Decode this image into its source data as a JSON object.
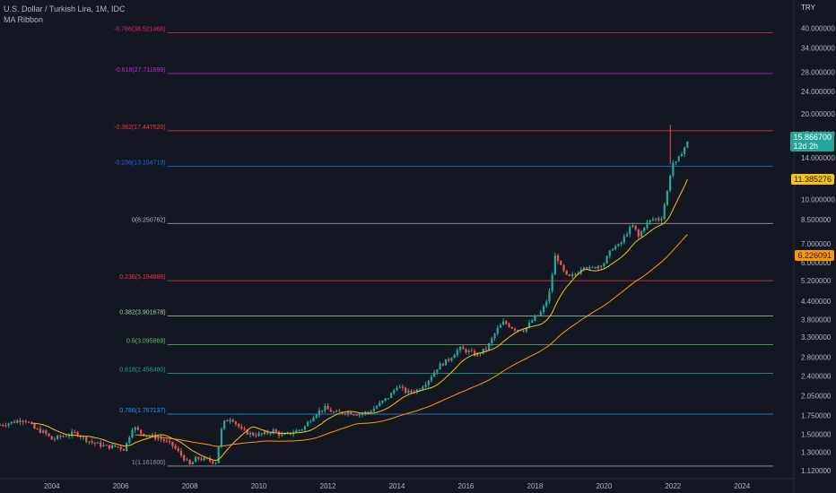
{
  "header": {
    "symbol_title": "U.S. Dollar / Turkish Lira, 1M, IDC",
    "indicator": "MA Ribbon"
  },
  "chart_data": {
    "type": "candlestick",
    "currency_label": "TRY",
    "y_scale": "log",
    "ylim": [
      1.08,
      46
    ],
    "xlim": [
      2002.5,
      2025.5
    ],
    "y_ticks": [
      "40.000000",
      "34.000000",
      "28.000000",
      "24.000000",
      "20.000000",
      "17.000000",
      "14.000000",
      "12.000000",
      "10.000000",
      "8.500000",
      "7.000000",
      "6.000000",
      "5.200000",
      "4.400000",
      "3.800000",
      "3.300000",
      "2.800000",
      "2.400000",
      "2.050000",
      "1.750000",
      "1.500000",
      "1.300000",
      "1.120000"
    ],
    "x_ticks": [
      "2004",
      "2006",
      "2008",
      "2010",
      "2012",
      "2014",
      "2016",
      "2018",
      "2020",
      "2022",
      "2024"
    ],
    "fib_levels": [
      {
        "label": "-0.786(38.521468)",
        "value": 38.521468,
        "color": "#e0245e"
      },
      {
        "label": "-0.618(27.711899)",
        "value": 27.711899,
        "color": "#c026d3"
      },
      {
        "label": "-0.382(17.447520)",
        "value": 17.44752,
        "color": "#f23645"
      },
      {
        "label": "-0.236(13.104719)",
        "value": 13.104719,
        "color": "#2962ff"
      },
      {
        "label": "0(8.250762)",
        "value": 8.250762,
        "color": "#b2b5be"
      },
      {
        "label": "0.236(5.194886)",
        "value": 5.194886,
        "color": "#f23645"
      },
      {
        "label": "0.382(3.901678)",
        "value": 3.901678,
        "color": "#a5d6a7"
      },
      {
        "label": "0.5(3.095869)",
        "value": 3.095869,
        "color": "#66bb6a"
      },
      {
        "label": "0.618(2.456480)",
        "value": 2.45648,
        "color": "#26a69a"
      },
      {
        "label": "0.786(1.767137)",
        "value": 1.767137,
        "color": "#2196f3"
      },
      {
        "label": "1(1.161600)",
        "value": 1.1616,
        "color": "#9598a1"
      }
    ],
    "series_points": [
      [
        2002.5,
        1.62
      ],
      [
        2002.9,
        1.66
      ],
      [
        2003.2,
        1.7
      ],
      [
        2003.5,
        1.57
      ],
      [
        2003.8,
        1.52
      ],
      [
        2004.0,
        1.44
      ],
      [
        2004.3,
        1.48
      ],
      [
        2004.7,
        1.52
      ],
      [
        2004.9,
        1.46
      ],
      [
        2005.2,
        1.4
      ],
      [
        2005.6,
        1.36
      ],
      [
        2005.9,
        1.36
      ],
      [
        2006.1,
        1.33
      ],
      [
        2006.35,
        1.6
      ],
      [
        2006.6,
        1.51
      ],
      [
        2006.9,
        1.48
      ],
      [
        2007.2,
        1.44
      ],
      [
        2007.5,
        1.37
      ],
      [
        2007.8,
        1.25
      ],
      [
        2008.0,
        1.17
      ],
      [
        2008.2,
        1.24
      ],
      [
        2008.5,
        1.22
      ],
      [
        2008.75,
        1.2
      ],
      [
        2008.95,
        1.64
      ],
      [
        2009.2,
        1.72
      ],
      [
        2009.5,
        1.55
      ],
      [
        2009.8,
        1.5
      ],
      [
        2010.1,
        1.5
      ],
      [
        2010.4,
        1.55
      ],
      [
        2010.7,
        1.48
      ],
      [
        2010.95,
        1.52
      ],
      [
        2011.3,
        1.58
      ],
      [
        2011.6,
        1.76
      ],
      [
        2011.9,
        1.86
      ],
      [
        2012.2,
        1.78
      ],
      [
        2012.5,
        1.8
      ],
      [
        2012.9,
        1.77
      ],
      [
        2013.2,
        1.8
      ],
      [
        2013.5,
        1.92
      ],
      [
        2013.8,
        2.05
      ],
      [
        2014.0,
        2.22
      ],
      [
        2014.3,
        2.1
      ],
      [
        2014.6,
        2.15
      ],
      [
        2014.9,
        2.32
      ],
      [
        2015.2,
        2.6
      ],
      [
        2015.5,
        2.75
      ],
      [
        2015.8,
        3.0
      ],
      [
        2016.0,
        2.95
      ],
      [
        2016.3,
        2.85
      ],
      [
        2016.6,
        3.0
      ],
      [
        2016.9,
        3.5
      ],
      [
        2017.1,
        3.72
      ],
      [
        2017.4,
        3.52
      ],
      [
        2017.7,
        3.5
      ],
      [
        2017.95,
        3.8
      ],
      [
        2018.2,
        4.05
      ],
      [
        2018.4,
        4.6
      ],
      [
        2018.6,
        6.5
      ],
      [
        2018.75,
        5.8
      ],
      [
        2018.95,
        5.3
      ],
      [
        2019.2,
        5.5
      ],
      [
        2019.4,
        5.9
      ],
      [
        2019.6,
        5.7
      ],
      [
        2019.8,
        5.85
      ],
      [
        2020.0,
        6.0
      ],
      [
        2020.25,
        6.8
      ],
      [
        2020.45,
        6.9
      ],
      [
        2020.7,
        7.8
      ],
      [
        2020.85,
        8.1
      ],
      [
        2021.0,
        7.4
      ],
      [
        2021.2,
        8.2
      ],
      [
        2021.45,
        8.6
      ],
      [
        2021.65,
        8.5
      ],
      [
        2021.85,
        10.9
      ],
      [
        2021.97,
        13.5
      ],
      [
        2022.1,
        13.4
      ],
      [
        2022.25,
        14.7
      ],
      [
        2022.42,
        15.86
      ]
    ],
    "last_price": "15.866700",
    "countdown": "12d 2h",
    "ma_short_value": "11.385276",
    "ma_long_value": "6.226091",
    "ma_short_color": "#f9c116",
    "ma_long_color": "#ff9800",
    "up_color": "#26a69a",
    "down_color": "#ef5350"
  }
}
